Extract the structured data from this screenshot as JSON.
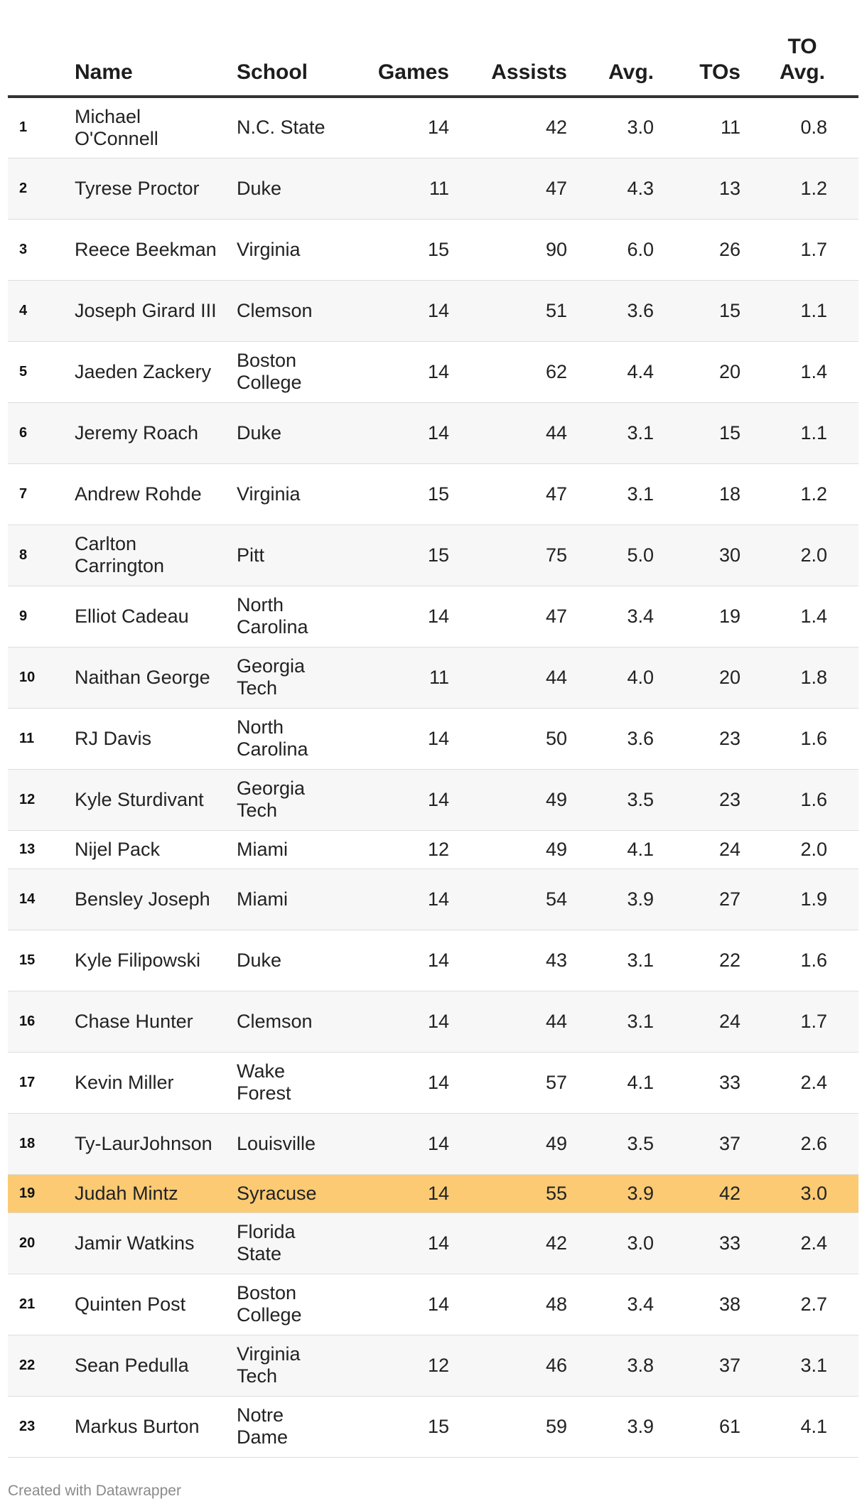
{
  "chart_data": {
    "type": "table",
    "columns": [
      "",
      "Name",
      "School",
      "Games",
      "Assists",
      "Avg.",
      "TOs",
      "TO Avg."
    ],
    "rows": [
      {
        "rank": "1",
        "name": "Michael O'Connell",
        "school": "N.C. State",
        "games": 14,
        "assists": 42,
        "avg": "3.0",
        "tos": 11,
        "to_avg": "0.8"
      },
      {
        "rank": "2",
        "name": "Tyrese Proctor",
        "school": "Duke",
        "games": 11,
        "assists": 47,
        "avg": "4.3",
        "tos": 13,
        "to_avg": "1.2"
      },
      {
        "rank": "3",
        "name": "Reece Beekman",
        "school": "Virginia",
        "games": 15,
        "assists": 90,
        "avg": "6.0",
        "tos": 26,
        "to_avg": "1.7"
      },
      {
        "rank": "4",
        "name": "Joseph Girard III",
        "school": "Clemson",
        "games": 14,
        "assists": 51,
        "avg": "3.6",
        "tos": 15,
        "to_avg": "1.1"
      },
      {
        "rank": "5",
        "name": "Jaeden Zackery",
        "school": "Boston College",
        "games": 14,
        "assists": 62,
        "avg": "4.4",
        "tos": 20,
        "to_avg": "1.4"
      },
      {
        "rank": "6",
        "name": "Jeremy Roach",
        "school": "Duke",
        "games": 14,
        "assists": 44,
        "avg": "3.1",
        "tos": 15,
        "to_avg": "1.1"
      },
      {
        "rank": "7",
        "name": "Andrew Rohde",
        "school": "Virginia",
        "games": 15,
        "assists": 47,
        "avg": "3.1",
        "tos": 18,
        "to_avg": "1.2"
      },
      {
        "rank": "8",
        "name": "Carlton Carrington",
        "school": "Pitt",
        "games": 15,
        "assists": 75,
        "avg": "5.0",
        "tos": 30,
        "to_avg": "2.0"
      },
      {
        "rank": "9",
        "name": "Elliot Cadeau",
        "school": "North Carolina",
        "games": 14,
        "assists": 47,
        "avg": "3.4",
        "tos": 19,
        "to_avg": "1.4"
      },
      {
        "rank": "10",
        "name": "Naithan George",
        "school": "Georgia Tech",
        "games": 11,
        "assists": 44,
        "avg": "4.0",
        "tos": 20,
        "to_avg": "1.8"
      },
      {
        "rank": "11",
        "name": "RJ Davis",
        "school": "North Carolina",
        "games": 14,
        "assists": 50,
        "avg": "3.6",
        "tos": 23,
        "to_avg": "1.6"
      },
      {
        "rank": "12",
        "name": "Kyle Sturdivant",
        "school": "Georgia Tech",
        "games": 14,
        "assists": 49,
        "avg": "3.5",
        "tos": 23,
        "to_avg": "1.6"
      },
      {
        "rank": "13",
        "name": "Nijel Pack",
        "school": "Miami",
        "games": 12,
        "assists": 49,
        "avg": "4.1",
        "tos": 24,
        "to_avg": "2.0"
      },
      {
        "rank": "14",
        "name": "Bensley Joseph",
        "school": "Miami",
        "games": 14,
        "assists": 54,
        "avg": "3.9",
        "tos": 27,
        "to_avg": "1.9"
      },
      {
        "rank": "15",
        "name": "Kyle Filipowski",
        "school": "Duke",
        "games": 14,
        "assists": 43,
        "avg": "3.1",
        "tos": 22,
        "to_avg": "1.6"
      },
      {
        "rank": "16",
        "name": "Chase Hunter",
        "school": "Clemson",
        "games": 14,
        "assists": 44,
        "avg": "3.1",
        "tos": 24,
        "to_avg": "1.7"
      },
      {
        "rank": "17",
        "name": "Kevin Miller",
        "school": "Wake Forest",
        "games": 14,
        "assists": 57,
        "avg": "4.1",
        "tos": 33,
        "to_avg": "2.4"
      },
      {
        "rank": "18",
        "name": "Ty-LaurJohnson",
        "school": "Louisville",
        "games": 14,
        "assists": 49,
        "avg": "3.5",
        "tos": 37,
        "to_avg": "2.6"
      },
      {
        "rank": "19",
        "name": "Judah Mintz",
        "school": "Syracuse",
        "games": 14,
        "assists": 55,
        "avg": "3.9",
        "tos": 42,
        "to_avg": "3.0",
        "highlighted": true
      },
      {
        "rank": "20",
        "name": "Jamir Watkins",
        "school": "Florida State",
        "games": 14,
        "assists": 42,
        "avg": "3.0",
        "tos": 33,
        "to_avg": "2.4"
      },
      {
        "rank": "21",
        "name": "Quinten Post",
        "school": "Boston College",
        "games": 14,
        "assists": 48,
        "avg": "3.4",
        "tos": 38,
        "to_avg": "2.7"
      },
      {
        "rank": "22",
        "name": "Sean Pedulla",
        "school": "Virginia Tech",
        "games": 12,
        "assists": 46,
        "avg": "3.8",
        "tos": 37,
        "to_avg": "3.1"
      },
      {
        "rank": "23",
        "name": "Markus Burton",
        "school": "Notre Dame",
        "games": 15,
        "assists": 59,
        "avg": "3.9",
        "tos": 61,
        "to_avg": "4.1"
      }
    ],
    "highlight_color": "#fbca73",
    "stripe_color": "#f7f7f7"
  },
  "footer": {
    "credit": "Created with Datawrapper"
  }
}
